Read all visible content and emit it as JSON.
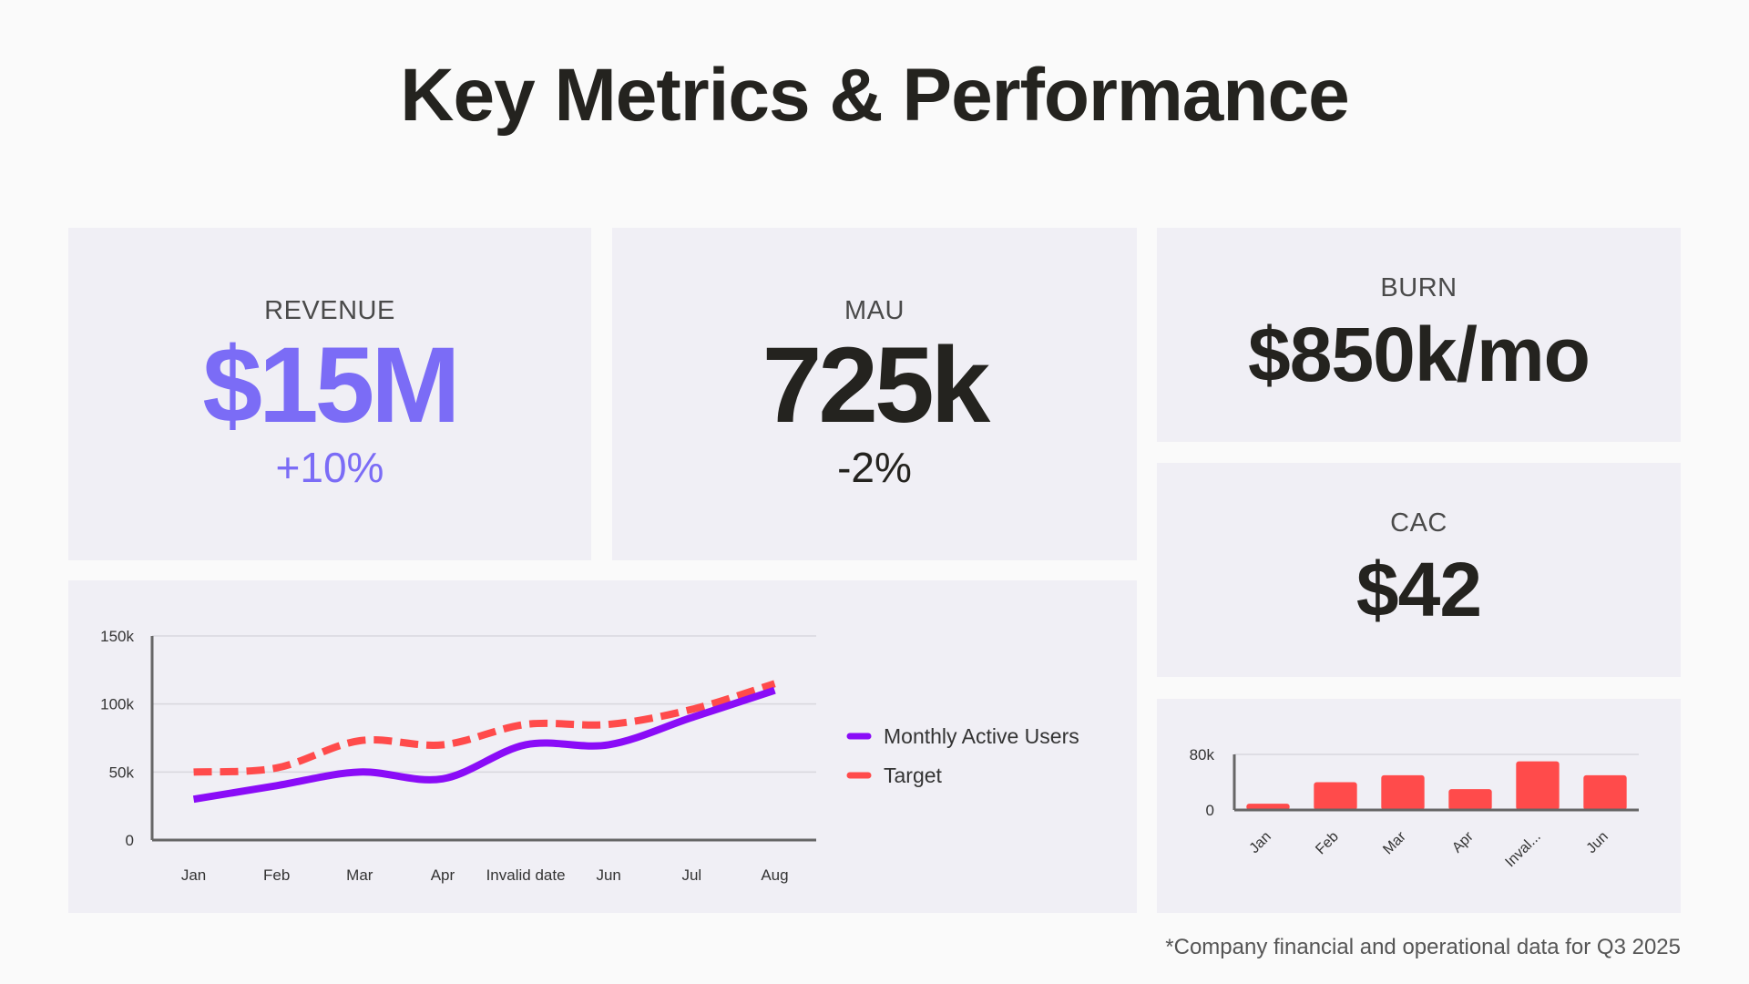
{
  "title": "Key Metrics & Performance",
  "colors": {
    "accent": "#7b6cf6",
    "mau_line": "#8a0cf7",
    "target_line": "#ff4b4b",
    "bar": "#ff4b4b",
    "card": "#f0eff5"
  },
  "kpis": {
    "revenue": {
      "label": "REVENUE",
      "value": "$15M",
      "change": "+10%"
    },
    "mau": {
      "label": "MAU",
      "value": "725k",
      "change": "-2%"
    },
    "burn": {
      "label": "BURN",
      "value": "$850k/mo"
    },
    "cac": {
      "label": "CAC",
      "value": "$42"
    }
  },
  "footnote": "*Company financial and operational data for Q3 2025",
  "chart_data": [
    {
      "type": "line",
      "categories": [
        "Jan",
        "Feb",
        "Mar",
        "Apr",
        "Invalid date",
        "Jun",
        "Jul",
        "Aug"
      ],
      "yticks": [
        "0",
        "50k",
        "100k",
        "150k"
      ],
      "ylim": [
        0,
        150000
      ],
      "grid": true,
      "legend": "right",
      "series": [
        {
          "name": "Monthly Active Users",
          "values": [
            30000,
            40000,
            50000,
            45000,
            70000,
            70000,
            90000,
            110000
          ],
          "style": "solid"
        },
        {
          "name": "Target",
          "values": [
            50000,
            53000,
            73000,
            70000,
            85000,
            85000,
            96000,
            115000
          ],
          "style": "dashed"
        }
      ]
    },
    {
      "type": "bar",
      "categories": [
        "Jan",
        "Feb",
        "Mar",
        "Apr",
        "Inval...",
        "Jun"
      ],
      "yticks": [
        "0",
        "80k"
      ],
      "ylim": [
        0,
        80000
      ],
      "values": [
        9000,
        40000,
        50000,
        30000,
        70000,
        50000
      ]
    }
  ]
}
